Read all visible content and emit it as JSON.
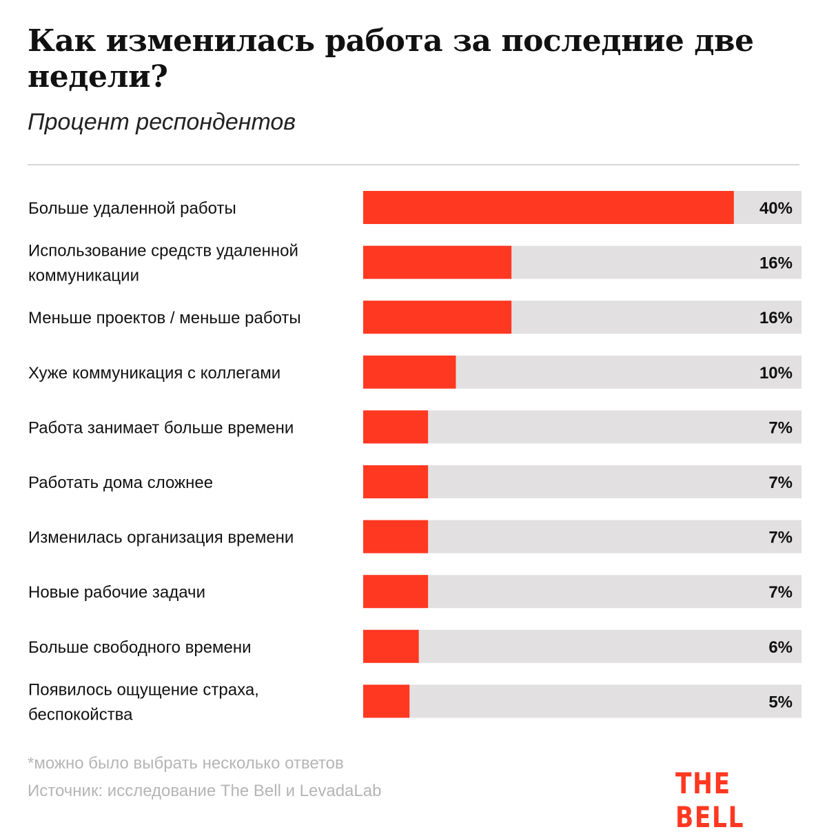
{
  "chart_data": {
    "type": "bar",
    "orientation": "horizontal",
    "title": "Как изменилась работа за последние две недели?",
    "subtitle": "Процент респондентов",
    "categories": [
      [
        "Больше удаленной работы"
      ],
      [
        "Использование средств удаленной",
        "коммуникации"
      ],
      [
        "Меньше проектов / меньше работы"
      ],
      [
        "Хуже коммуникация с коллегами"
      ],
      [
        "Работа занимает больше времени"
      ],
      [
        "Работать дома сложнее"
      ],
      [
        "Изменилась организация времени"
      ],
      [
        "Новые рабочие задачи"
      ],
      [
        "Больше свободного времени"
      ],
      [
        "Появилось ощущение страха,",
        "беспокойства"
      ]
    ],
    "values": [
      40,
      16,
      16,
      10,
      7,
      7,
      7,
      7,
      6,
      5
    ],
    "value_labels": [
      "40%",
      "16%",
      "16%",
      "10%",
      "7%",
      "7%",
      "7%",
      "7%",
      "6%",
      "5%"
    ],
    "xlim": [
      0,
      47.3
    ],
    "grid": false,
    "colors": {
      "bar": "#ff3822",
      "track": "#e2e0e0"
    }
  },
  "footnote": "*можно было выбрать несколько ответов",
  "source": "Источник: исследование The Bell и LevadaLab",
  "logo": "THE BELL"
}
